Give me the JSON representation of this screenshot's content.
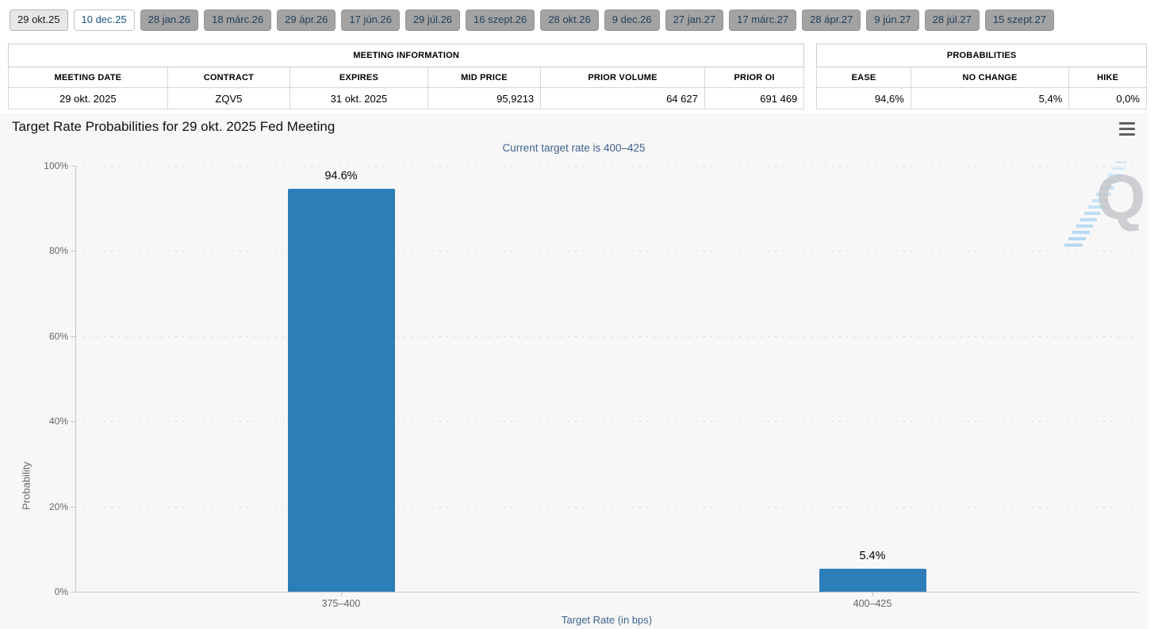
{
  "tabs": {
    "active_label": "10 dec.25",
    "items": [
      {
        "label": "29 okt.25",
        "variant": "muted"
      },
      {
        "label": "10 dec.25",
        "variant": "active"
      },
      {
        "label": "28 jan.26",
        "variant": "default"
      },
      {
        "label": "18 márc.26",
        "variant": "default"
      },
      {
        "label": "29 ápr.26",
        "variant": "default"
      },
      {
        "label": "17 jún.26",
        "variant": "default"
      },
      {
        "label": "29 júl.26",
        "variant": "default"
      },
      {
        "label": "16 szept.26",
        "variant": "default"
      },
      {
        "label": "28 okt.26",
        "variant": "default"
      },
      {
        "label": "9 dec.26",
        "variant": "default"
      },
      {
        "label": "27 jan.27",
        "variant": "default"
      },
      {
        "label": "17 márc.27",
        "variant": "default"
      },
      {
        "label": "28 ápr.27",
        "variant": "default"
      },
      {
        "label": "9 jún.27",
        "variant": "default"
      },
      {
        "label": "28 júl.27",
        "variant": "default"
      },
      {
        "label": "15 szept.27",
        "variant": "default"
      }
    ]
  },
  "meeting_info": {
    "title": "MEETING INFORMATION",
    "columns": [
      "MEETING DATE",
      "CONTRACT",
      "EXPIRES",
      "MID PRICE",
      "PRIOR VOLUME",
      "PRIOR OI"
    ],
    "row": [
      "29 okt. 2025",
      "ZQV5",
      "31 okt. 2025",
      "95,9213",
      "64 627",
      "691 469"
    ]
  },
  "probabilities": {
    "title": "PROBABILITIES",
    "columns": [
      "EASE",
      "NO CHANGE",
      "HIKE"
    ],
    "row": [
      "94,6%",
      "5,4%",
      "0,0%"
    ]
  },
  "chart": {
    "title": "Target Rate Probabilities for 29 okt. 2025 Fed Meeting",
    "subtitle": "Current target rate is 400–425",
    "watermark_letter": "Q"
  },
  "chart_data": {
    "type": "bar",
    "title": "Target Rate Probabilities for 29 okt. 2025 Fed Meeting",
    "subtitle": "Current target rate is 400–425",
    "categories": [
      "375–400",
      "400–425"
    ],
    "values": [
      94.6,
      5.4
    ],
    "value_labels": [
      "94.6%",
      "5.4%"
    ],
    "xlabel": "Target Rate (in bps)",
    "ylabel": "Probability",
    "ylim": [
      0,
      100
    ],
    "ytick_step": 20,
    "ytick_suffix": "%",
    "grid": "horizontal dotted",
    "legend": "none",
    "bar_color": "#2d7eb8"
  }
}
